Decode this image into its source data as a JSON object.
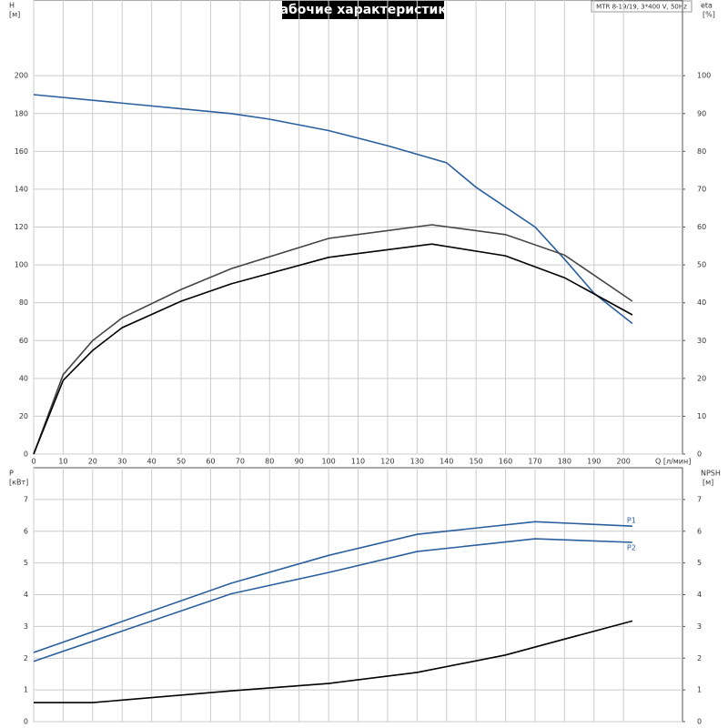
{
  "chart_data": [
    {
      "type": "line",
      "title": "Рабочие характеристики",
      "annotation": "MTR 8-19/19, 3*400 V, 50Hz",
      "ylabel": "H",
      "ylabel_unit": "[м]",
      "y2label": "eta",
      "y2label_unit": "[%]",
      "xlabel": "Q [л/мин]",
      "xlim": [
        0,
        220
      ],
      "xticks": [
        0,
        10,
        20,
        30,
        40,
        50,
        60,
        70,
        80,
        90,
        100,
        110,
        120,
        130,
        140,
        150,
        160,
        170,
        180,
        190,
        200
      ],
      "ylim": [
        0,
        240
      ],
      "yticks": [
        0,
        20,
        40,
        60,
        80,
        100,
        120,
        140,
        160,
        180,
        200
      ],
      "y2lim": [
        0,
        120
      ],
      "y2ticks": [
        0,
        10,
        20,
        30,
        40,
        50,
        60,
        70,
        80,
        90,
        100
      ],
      "grid": true,
      "series": [
        {
          "color": "#2a5f9e",
          "x": [
            0,
            67,
            80,
            100,
            120,
            140,
            150,
            170,
            180,
            190,
            203
          ],
          "values": [
            190,
            180,
            177,
            171,
            163,
            154,
            141,
            120,
            103,
            85,
            69
          ]
        },
        {
          "color": "#444444",
          "axis": "y2",
          "x": [
            0,
            10,
            20,
            30,
            50,
            67,
            100,
            135,
            160,
            180,
            203
          ],
          "values": [
            0,
            21,
            30,
            36,
            43.5,
            49,
            57,
            60.6,
            58,
            52.6,
            40.4
          ]
        },
        {
          "color": "#000000",
          "axis": "y2",
          "x": [
            0,
            10,
            20,
            30,
            50,
            67,
            100,
            135,
            160,
            180,
            203
          ],
          "values": [
            0,
            19.5,
            27.4,
            33.4,
            40.4,
            45,
            52,
            55.5,
            52.4,
            46.6,
            36.8
          ]
        }
      ]
    },
    {
      "type": "line",
      "ylabel": "P",
      "ylabel_unit": "[кВт]",
      "y2label": "NPSH",
      "y2label_unit": "[м]",
      "ylim": [
        0,
        8
      ],
      "yticks": [
        0,
        1,
        2,
        3,
        4,
        5,
        6,
        7
      ],
      "y2lim": [
        0,
        8
      ],
      "y2ticks": [
        0,
        1,
        2,
        3,
        4,
        5,
        6,
        7
      ],
      "grid": true,
      "series": [
        {
          "name": "P1",
          "color": "#2a5f9e",
          "x": [
            0,
            67,
            100,
            130,
            170,
            203
          ],
          "values": [
            2.18,
            4.36,
            5.24,
            5.9,
            6.3,
            6.16
          ]
        },
        {
          "name": "P2",
          "color": "#2a5f9e",
          "x": [
            0,
            67,
            100,
            130,
            170,
            203
          ],
          "values": [
            1.9,
            4.03,
            4.7,
            5.36,
            5.76,
            5.65
          ]
        },
        {
          "color": "#000000",
          "axis": "y2",
          "x": [
            0,
            20,
            67,
            100,
            130,
            160,
            180,
            203
          ],
          "values": [
            0.6,
            0.6,
            0.97,
            1.2,
            1.55,
            2.1,
            2.6,
            3.17
          ]
        }
      ]
    }
  ]
}
